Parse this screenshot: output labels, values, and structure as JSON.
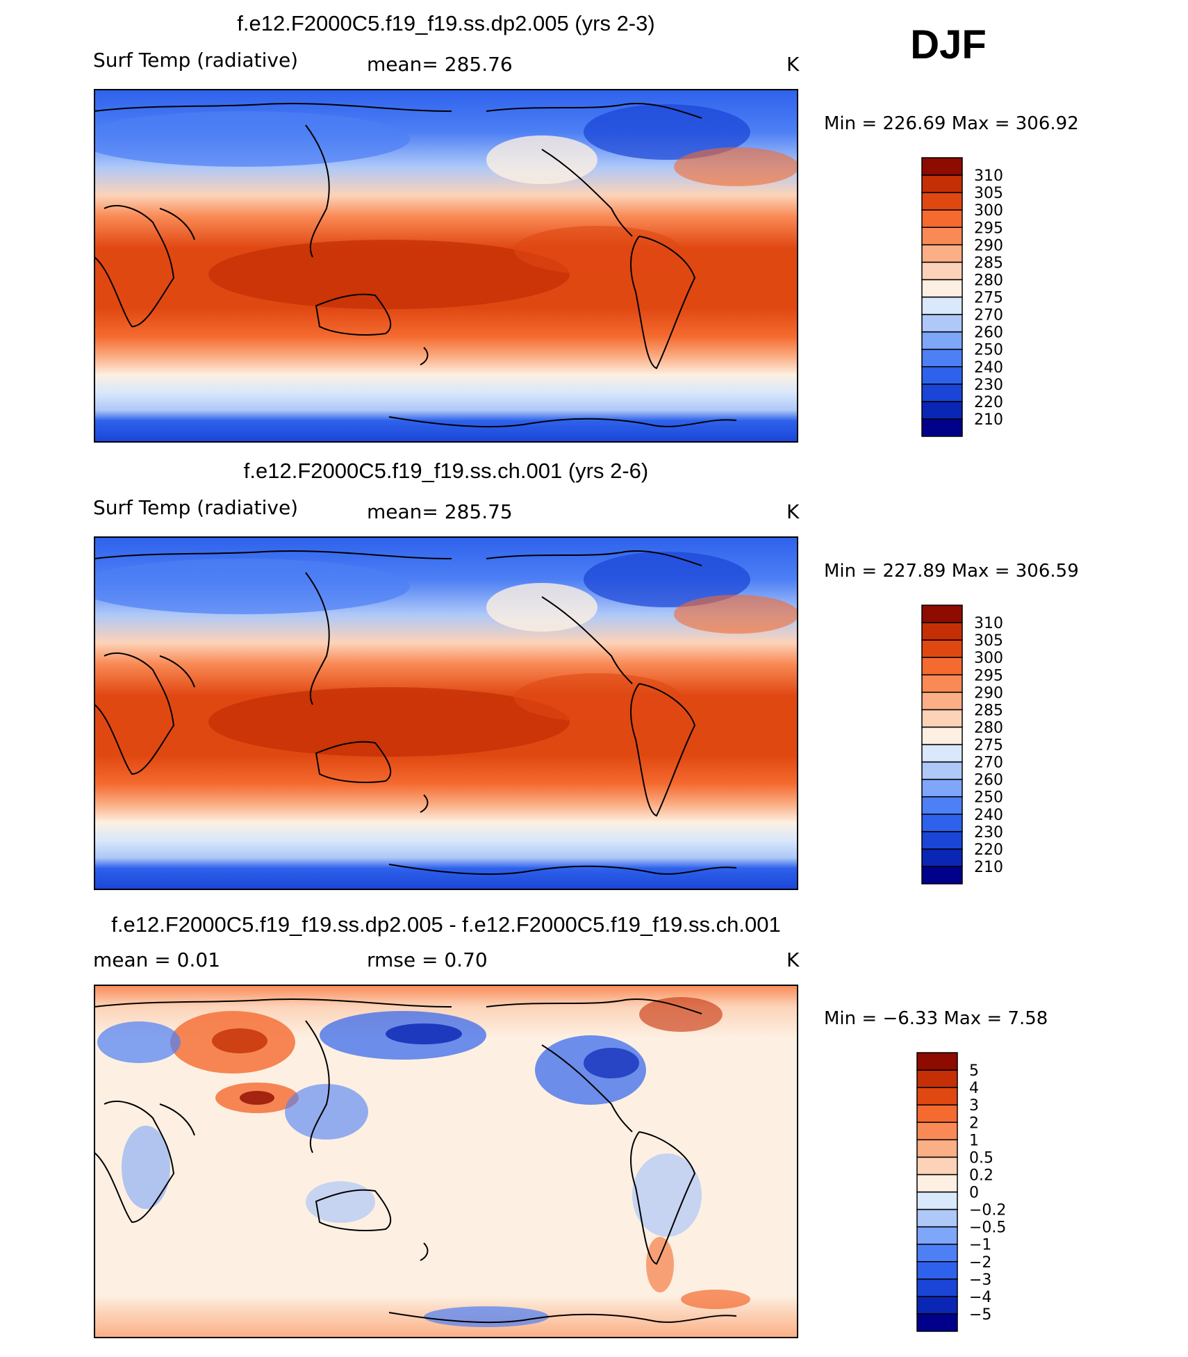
{
  "season": "DJF",
  "palette": {
    "abs": [
      "#00008b",
      "#0a26b4",
      "#1a45d6",
      "#2e62ec",
      "#4d7ff5",
      "#7ea6f9",
      "#aec8f8",
      "#d9e8fa",
      "#fdf0e2",
      "#fcd3b8",
      "#fbaf86",
      "#f98a56",
      "#f46a2f",
      "#e04812",
      "#c42f06",
      "#8e0b00"
    ],
    "diff": [
      "#00008b",
      "#0a26b4",
      "#1a45d6",
      "#2e62ec",
      "#4d7ff5",
      "#7ea6f9",
      "#aec8f8",
      "#d9e8fa",
      "#fdf0e2",
      "#fcd3b8",
      "#fbaf86",
      "#f98a56",
      "#f46a2f",
      "#e04812",
      "#c42f06",
      "#8e0b00"
    ]
  },
  "chart_data": [
    {
      "type": "heatmap",
      "id": "panel1",
      "title": "f.e12.F2000C5.f19_f19.ss.dp2.005 (yrs 2-3)",
      "variable": "Surf Temp (radiative)",
      "stat_text": "mean=  285.76",
      "units": "K",
      "range_text": "Min  =  226.69  Max  =  306.92",
      "min": 226.69,
      "max": 306.92,
      "mean": 285.76,
      "colorbar": [
        "310",
        "305",
        "300",
        "295",
        "290",
        "285",
        "280",
        "275",
        "270",
        "260",
        "250",
        "240",
        "230",
        "220",
        "210"
      ]
    },
    {
      "type": "heatmap",
      "id": "panel2",
      "title": "f.e12.F2000C5.f19_f19.ss.ch.001 (yrs 2-6)",
      "variable": "Surf Temp (radiative)",
      "stat_text": "mean=  285.75",
      "units": "K",
      "range_text": "Min  =  227.89  Max  =  306.59",
      "min": 227.89,
      "max": 306.59,
      "mean": 285.75,
      "colorbar": [
        "310",
        "305",
        "300",
        "295",
        "290",
        "285",
        "280",
        "275",
        "270",
        "260",
        "250",
        "240",
        "230",
        "220",
        "210"
      ]
    },
    {
      "type": "heatmap",
      "id": "panel3",
      "title": "f.e12.F2000C5.f19_f19.ss.dp2.005 - f.e12.F2000C5.f19_f19.ss.ch.001",
      "variable": "mean =      0.01",
      "stat_text": "rmse =      0.70",
      "units": "K",
      "range_text": "Min  =     −6.33  Max  =       7.58",
      "min": -6.33,
      "max": 7.58,
      "mean": 0.01,
      "rmse": 0.7,
      "colorbar": [
        "5",
        "4",
        "3",
        "2",
        "1",
        "0.5",
        "0.2",
        "0",
        "−0.2",
        "−0.5",
        "−1",
        "−2",
        "−3",
        "−4",
        "−5"
      ]
    }
  ]
}
